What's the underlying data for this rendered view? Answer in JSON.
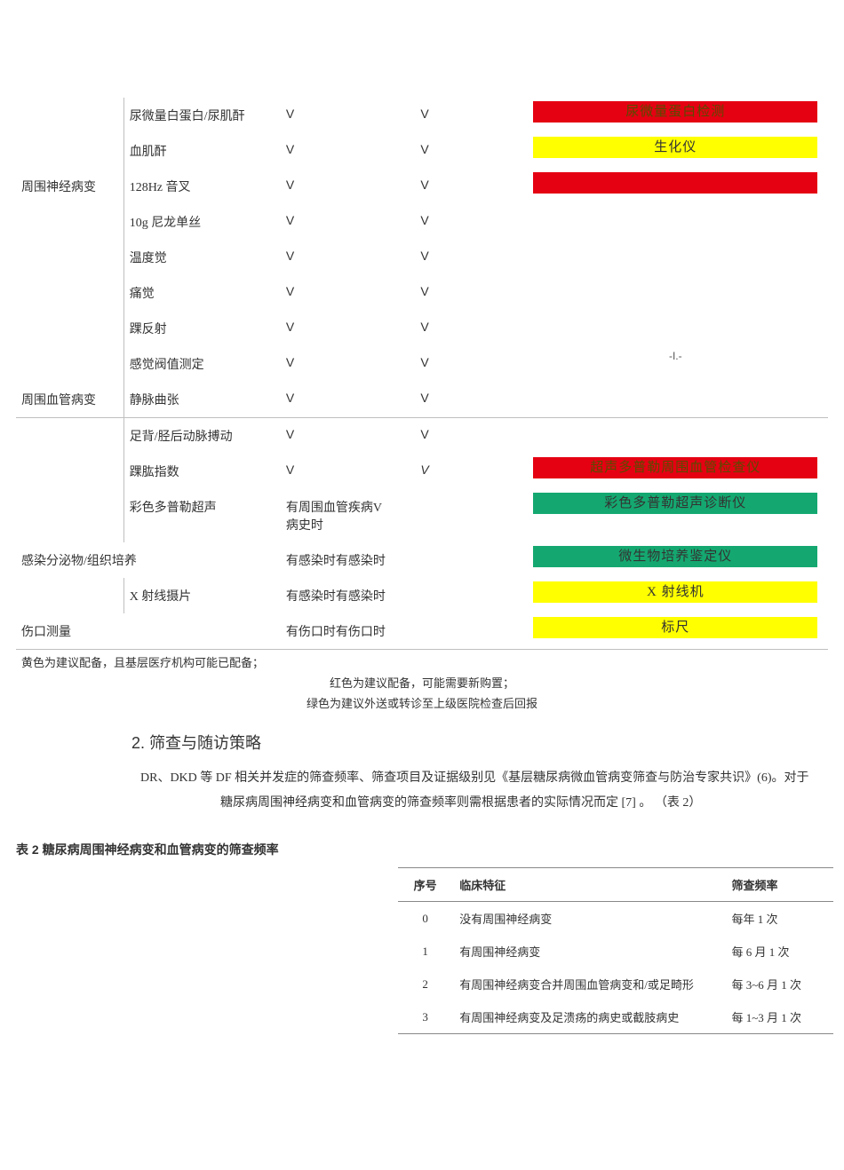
{
  "colors": {
    "red": "#e50012",
    "yellow": "#ffff00",
    "green": "#14a870",
    "border": "#bfbfbf",
    "text": "#333333",
    "bg": "#ffffff"
  },
  "table1": {
    "rows": [
      {
        "cat": "",
        "item": "尿微量白蛋白/尿肌酐",
        "col3": "V",
        "col4": "V",
        "badge": {
          "text": "尿微量蛋白检测",
          "style": "red"
        }
      },
      {
        "cat": "",
        "item": "血肌酐",
        "col3": "V",
        "col4": "V",
        "badge": {
          "text": "生化仪",
          "style": "yellow"
        }
      },
      {
        "cat": "周围神经病变",
        "item": "128Hz 音叉",
        "col3": "V",
        "col4": "V",
        "badge": {
          "text": "",
          "style": "red"
        }
      },
      {
        "cat": "",
        "item": "10g 尼龙单丝",
        "col3": "V",
        "col4": "V",
        "badge": null
      },
      {
        "cat": "",
        "item": "温度觉",
        "col3": "V",
        "col4": "V",
        "badge": null
      },
      {
        "cat": "",
        "item": "痛觉",
        "col3": "V",
        "col4": "V",
        "badge": null
      },
      {
        "cat": "",
        "item": "踝反射",
        "col3": "V",
        "col4": "V",
        "badge": null
      },
      {
        "cat": "",
        "item": "感觉阀值测定",
        "col3": "V",
        "col4": "V",
        "badge": null,
        "note_right": "-I.-"
      },
      {
        "cat": "周围血管病变",
        "item": "静脉曲张",
        "col3": "V",
        "col4": "V",
        "badge": null,
        "underline": true
      },
      {
        "cat": "",
        "item": "足背/胫后动脉搏动",
        "col3": "V",
        "col4": "V",
        "badge": null
      },
      {
        "cat": "",
        "item": "踝肱指数",
        "col3": "V",
        "col4": "V",
        "col4_italic": true,
        "badge": {
          "text": "超声多普勒周围血管检查仪",
          "style": "red"
        }
      },
      {
        "cat": "",
        "item": "彩色多普勒超声",
        "col3": "有周围血管疾病V",
        "col4": "病史时",
        "wrap": true,
        "badge": {
          "text": "彩色多普勒超声诊断仪",
          "style": "green"
        }
      },
      {
        "cat": "感染分泌物/组织培养",
        "item": "",
        "colspan01": true,
        "col3": "有感染时有感染时",
        "col4": "",
        "badge": {
          "text": "微生物培养鉴定仪",
          "style": "green"
        }
      },
      {
        "cat": "",
        "item": "X 射线摄片",
        "col3": "有感染时有感染时",
        "col4": "",
        "badge": {
          "text": "X 射线机",
          "style": "yellow"
        }
      },
      {
        "cat": "伤口测量",
        "item": "",
        "colspan01": true,
        "col3": "有伤口时有伤口时",
        "col4": "",
        "badge": {
          "text": "标尺",
          "style": "yellow"
        },
        "underline": true
      }
    ]
  },
  "legend": {
    "l1": "黄色为建议配备，且基层医疗机构可能已配备；",
    "l2": "红色为建议配备，可能需要新购置；",
    "l3": "绿色为建议外送或转诊至上级医院检查后回报"
  },
  "section": {
    "heading": "2. 筛查与随访策略",
    "para1": "DR、DKD 等 DF 相关并发症的筛查频率、筛查项目及证据级别见《基层糖尿病微血管病变筛查与防治专家共识》(6)。对于",
    "para2": "糖尿病周围神经病变和血管病变的筛查频率则需根据患者的实际情况而定  [7]  。 （表 2）"
  },
  "table2": {
    "title": "表 2 糖尿病周围神经病变和血管病变的筛查频率",
    "head": {
      "a": "序号",
      "b": "临床特征",
      "c": "筛查频率"
    },
    "rows": [
      {
        "a": "0",
        "b": "没有周围神经病变",
        "c": "每年 1 次"
      },
      {
        "a": "1",
        "b": "有周围神经病变",
        "c": "每 6 月 1 次"
      },
      {
        "a": "2",
        "b": "有周围神经病变合并周围血管病变和/或足畸形",
        "c": "每 3~6 月 1 次"
      },
      {
        "a": "3",
        "b": "有周围神经病变及足溃疡的病史或截肢病史",
        "c": "每 1~3 月 1 次"
      }
    ]
  }
}
